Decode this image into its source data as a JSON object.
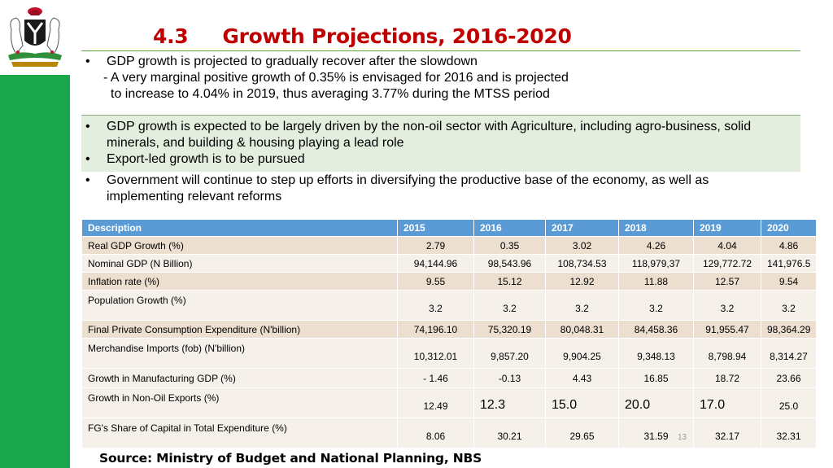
{
  "title": {
    "number": "4.3",
    "text": "Growth Projections, 2016-2020"
  },
  "bullets": {
    "b1": "GDP growth is projected to gradually recover after the slowdown",
    "b1_sub1": "- A very marginal positive growth of 0.35% is envisaged for 2016 and is projected",
    "b1_sub2": "to increase to 4.04% in 2019, thus averaging 3.77% during the MTSS period",
    "b2_l1": "GDP growth is expected to be largely driven by the non-oil sector with Agriculture, including agro-business, solid",
    "b2_l2": "minerals, and building & housing playing a lead role",
    "b3": "Export-led growth is to be pursued",
    "b4_l1": "Government will continue to step up efforts in diversifying the productive base of the economy, as well as",
    "b4_l2": "implementing relevant reforms",
    "glyph": "•"
  },
  "table": {
    "headers": [
      "Description",
      "2015",
      "2016",
      "2017",
      "2018",
      "2019",
      "2020"
    ],
    "rows": [
      {
        "cells": [
          "Real GDP Growth (%)",
          "2.79",
          "0.35",
          "3.02",
          "4.26",
          "4.04",
          "4.86"
        ]
      },
      {
        "cells": [
          "Nominal GDP (N Billion)",
          "94,144.96",
          "98,543.96",
          "108,734.53",
          "118,979,37",
          "129,772.72",
          "141,976.5"
        ]
      },
      {
        "cells": [
          "Inflation rate (%)",
          "9.55",
          "15.12",
          "12.92",
          "11.88",
          "12.57",
          "9.54"
        ]
      },
      {
        "cells": [
          "Population Growth (%)",
          "3.2",
          "3.2",
          "3.2",
          "3.2",
          "3.2",
          "3.2"
        ]
      },
      {
        "cells": [
          "Final Private Consumption Expenditure (N'billion)",
          "74,196.10",
          "75,320.19",
          "80,048.31",
          "84,458.36",
          "91,955.47",
          "98,364.29"
        ]
      },
      {
        "cells": [
          "Merchandise Imports (fob) (N'billion)",
          "10,312.01",
          "9,857.20",
          "9,904.25",
          "9,348.13",
          "8,798.94",
          "8,314.27"
        ]
      },
      {
        "cells": [
          "Growth in Manufacturing GDP (%)",
          "- 1.46",
          "-0.13",
          "4.43",
          "16.85",
          "18.72",
          "23.66"
        ]
      },
      {
        "cells": [
          "Growth in Non-Oil Exports (%)",
          "12.49",
          "12.3",
          "15.0",
          "20.0",
          "17.0",
          "25.0"
        ]
      },
      {
        "cells": [
          "FG's Share of Capital in Total Expenditure (%)",
          "8.06",
          "30.21",
          "29.65",
          "31.59",
          "32.17",
          "32.31"
        ]
      }
    ]
  },
  "page_number": "13",
  "source": "Source: Ministry of Budget and National Planning, NBS",
  "colors": {
    "sidebar": "#1aa64a",
    "title": "#c00000",
    "header": "#5b9bd5",
    "row_odd": "#ecdfcf",
    "row_even": "#f6f0ea",
    "highlight": "#e3eede"
  },
  "crest": "nigeria-coat-of-arms"
}
